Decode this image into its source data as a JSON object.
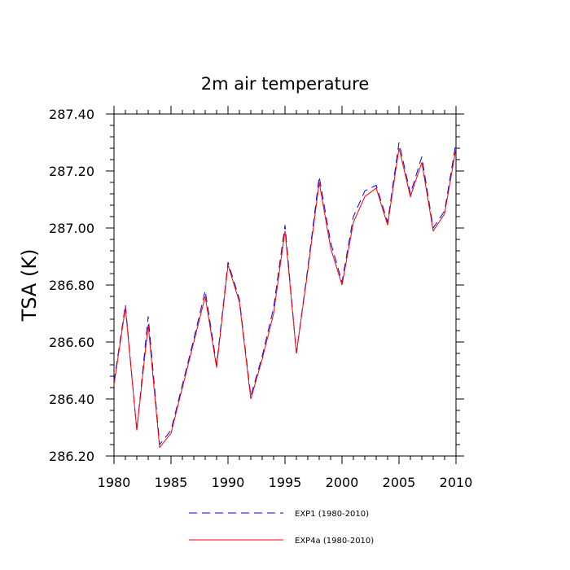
{
  "chart_data": {
    "type": "line",
    "title": "2m air temperature",
    "xlabel": "",
    "ylabel": "TSA  (K)",
    "xlim": [
      1980,
      2010
    ],
    "ylim": [
      286.2,
      287.4
    ],
    "x_ticks": [
      1980,
      1985,
      1990,
      1995,
      2000,
      2005,
      2010
    ],
    "x_tick_labels": [
      "1980",
      "1985",
      "1990",
      "1995",
      "2000",
      "2005",
      "2010"
    ],
    "y_ticks": [
      286.2,
      286.4,
      286.6,
      286.8,
      287.0,
      287.2,
      287.4
    ],
    "y_tick_labels": [
      "286.20",
      "286.40",
      "286.60",
      "286.80",
      "287.00",
      "287.20",
      "287.40"
    ],
    "grid": false,
    "legend_position": "bottom",
    "x": [
      1980,
      1981,
      1982,
      1983,
      1984,
      1985,
      1986,
      1987,
      1988,
      1989,
      1990,
      1991,
      1992,
      1993,
      1994,
      1995,
      1996,
      1997,
      1998,
      1999,
      2000,
      2001,
      2002,
      2003,
      2004,
      2005,
      2006,
      2007,
      2008,
      2009,
      2010
    ],
    "series": [
      {
        "name": "EXP1 (1980-2010)",
        "color": "#0000ff",
        "dash": "dashed",
        "values": [
          286.46,
          286.73,
          286.29,
          286.69,
          286.24,
          286.29,
          286.45,
          286.61,
          286.78,
          286.52,
          286.88,
          286.75,
          286.41,
          286.55,
          286.72,
          287.01,
          286.56,
          286.86,
          287.18,
          286.95,
          286.81,
          287.04,
          287.13,
          287.15,
          287.02,
          287.3,
          287.12,
          287.25,
          287.0,
          287.06,
          287.3
        ]
      },
      {
        "name": "EXP4a (1980-2010)",
        "color": "#ff0000",
        "dash": "solid",
        "values": [
          286.45,
          286.72,
          286.29,
          286.66,
          286.23,
          286.28,
          286.44,
          286.6,
          286.76,
          286.51,
          286.87,
          286.74,
          286.4,
          286.54,
          286.7,
          286.99,
          286.56,
          286.85,
          287.16,
          286.93,
          286.8,
          287.02,
          287.11,
          287.14,
          287.01,
          287.28,
          287.11,
          287.23,
          286.99,
          287.05,
          287.28
        ]
      }
    ]
  }
}
